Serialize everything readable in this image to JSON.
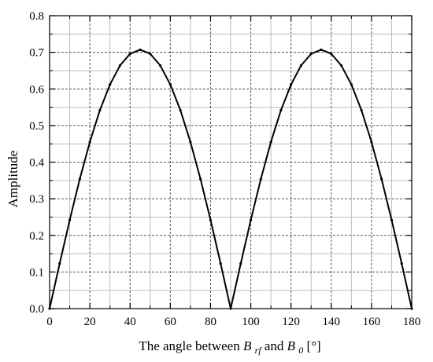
{
  "chart_data": {
    "type": "line",
    "title": "",
    "xlabel": {
      "prefix": "The angle between ",
      "var1": "B",
      "var1_sub": "rf",
      "middle": "  and ",
      "var2": "B",
      "var2_sub": "0",
      "suffix": " [°]"
    },
    "ylabel": "Amplitude",
    "xlim": [
      0,
      180
    ],
    "ylim": [
      0,
      0.8
    ],
    "xticks": [
      0,
      20,
      40,
      60,
      80,
      100,
      120,
      140,
      160,
      180
    ],
    "xtick_labels": [
      "0",
      "20",
      "40",
      "60",
      "80",
      "100",
      "120",
      "140",
      "160",
      "180"
    ],
    "yticks": [
      0.0,
      0.1,
      0.2,
      0.3,
      0.4,
      0.5,
      0.6,
      0.7,
      0.8
    ],
    "ytick_labels": [
      "0.0",
      "0.1",
      "0.2",
      "0.3",
      "0.4",
      "0.5",
      "0.6",
      "0.7",
      "0.8"
    ],
    "x_minor_step": 10,
    "y_minor_step": 0.05,
    "grid": true,
    "legend": "none",
    "series": [
      {
        "x": [
          0,
          5,
          10,
          15,
          20,
          25,
          30,
          35,
          40,
          45,
          50,
          55,
          60,
          65,
          70,
          75,
          80,
          85,
          90,
          95,
          100,
          105,
          110,
          115,
          120,
          125,
          130,
          135,
          140,
          145,
          150,
          155,
          160,
          165,
          170,
          175,
          180
        ],
        "values": [
          0,
          0.123,
          0.242,
          0.354,
          0.455,
          0.542,
          0.612,
          0.664,
          0.696,
          0.707,
          0.696,
          0.664,
          0.612,
          0.542,
          0.455,
          0.354,
          0.242,
          0.123,
          0,
          0.123,
          0.242,
          0.354,
          0.455,
          0.542,
          0.612,
          0.664,
          0.696,
          0.707,
          0.696,
          0.664,
          0.612,
          0.542,
          0.455,
          0.354,
          0.242,
          0.123,
          0
        ],
        "color": "#000000"
      }
    ],
    "colors": {
      "line": "#000000",
      "major_grid": "#555555",
      "minor_grid": "#bdbdbd",
      "frame": "#000000",
      "background": "#ffffff"
    }
  }
}
